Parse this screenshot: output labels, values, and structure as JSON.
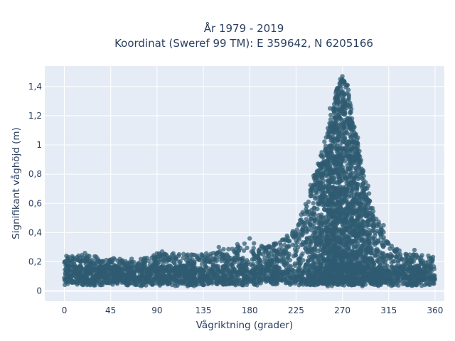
{
  "chart_data": {
    "type": "scatter",
    "title_line1": "År 1979 - 2019",
    "title_line2": "Koordinat (Sweref 99 TM): E 359642, N 6205166",
    "xlabel": "Vågriktning (grader)",
    "ylabel": "Signifikant våghöjd (m)",
    "xlim": [
      -19,
      369
    ],
    "ylim": [
      -0.07,
      1.54
    ],
    "x_ticks": [
      0,
      45,
      90,
      135,
      180,
      225,
      270,
      315,
      360
    ],
    "x_tick_labels": [
      "0",
      "45",
      "90",
      "135",
      "180",
      "225",
      "270",
      "315",
      "360"
    ],
    "y_ticks": [
      0,
      0.2,
      0.4,
      0.6,
      0.8,
      1.0,
      1.2,
      1.4
    ],
    "y_tick_labels": [
      "0",
      "0,2",
      "0,4",
      "0,6",
      "0,8",
      "1",
      "1,2",
      "1,4"
    ],
    "grid": true,
    "marker_color": "#2f5b72",
    "plot_bgcolor": "#e5ecf6",
    "distribution": {
      "direction": [
        0,
        15,
        30,
        45,
        60,
        75,
        90,
        105,
        120,
        135,
        150,
        165,
        180,
        195,
        210,
        225,
        240,
        250,
        260,
        265,
        270,
        275,
        280,
        290,
        300,
        315,
        330,
        345,
        360
      ],
      "max_height": [
        0.23,
        0.25,
        0.24,
        0.23,
        0.22,
        0.23,
        0.26,
        0.26,
        0.25,
        0.26,
        0.29,
        0.3,
        0.34,
        0.3,
        0.34,
        0.44,
        0.75,
        0.95,
        1.25,
        1.4,
        1.46,
        1.42,
        1.2,
        0.85,
        0.55,
        0.33,
        0.26,
        0.25,
        0.24
      ]
    },
    "points": [
      {
        "x": 270,
        "y": 1.47
      },
      {
        "x": 268,
        "y": 1.45
      },
      {
        "x": 272,
        "y": 1.43
      },
      {
        "x": 275,
        "y": 1.41
      },
      {
        "x": 266,
        "y": 1.39
      },
      {
        "x": 263,
        "y": 1.32
      },
      {
        "x": 258,
        "y": 1.25
      },
      {
        "x": 278,
        "y": 1.27
      },
      {
        "x": 250,
        "y": 0.95
      },
      {
        "x": 245,
        "y": 0.78
      },
      {
        "x": 285,
        "y": 1.05
      },
      {
        "x": 295,
        "y": 0.72
      },
      {
        "x": 310,
        "y": 0.45
      },
      {
        "x": 20,
        "y": 0.26
      },
      {
        "x": 2,
        "y": 0.24
      },
      {
        "x": 95,
        "y": 0.27
      },
      {
        "x": 180,
        "y": 0.36
      },
      {
        "x": 168,
        "y": 0.32
      },
      {
        "x": 150,
        "y": 0.3
      },
      {
        "x": 340,
        "y": 0.28
      }
    ]
  }
}
